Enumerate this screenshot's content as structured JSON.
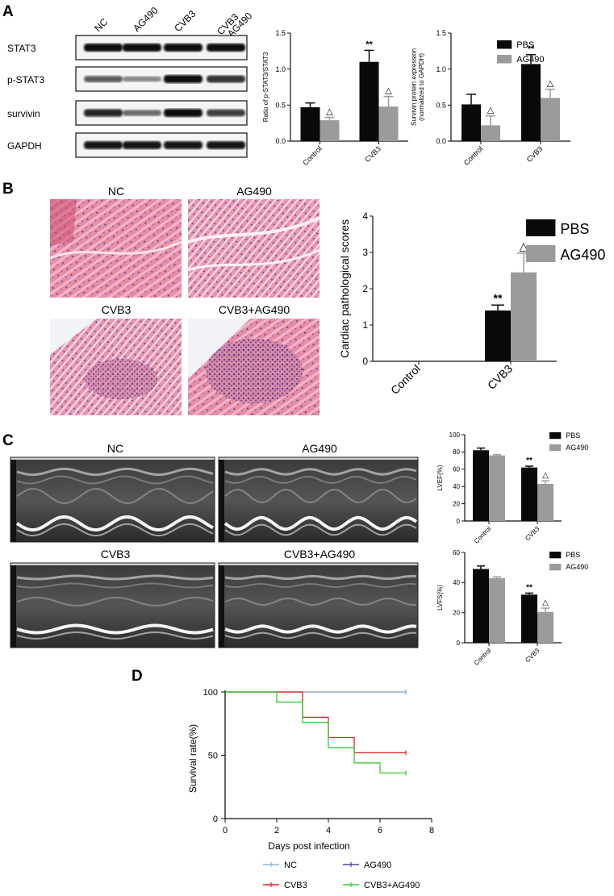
{
  "panels": {
    "A": "A",
    "B": "B",
    "C": "C",
    "D": "D"
  },
  "colors": {
    "pbs": "#0a0a0a",
    "ag490": "#9b9b9b",
    "nc": "#8fb4d9",
    "ag490_line": "#5b3fa0",
    "cvb3": "#e02020",
    "cvb3_ag490": "#33cc33"
  },
  "blot": {
    "lanes": [
      "NC",
      "AG490",
      "CVB3",
      "CVB3\n+AG490"
    ],
    "rows": [
      "STAT3",
      "p-STAT3",
      "survivin",
      "GAPDH"
    ]
  },
  "histology": {
    "labels": [
      "NC",
      "AG490",
      "CVB3",
      "CVB3+AG490"
    ]
  },
  "echo": {
    "labels": [
      "NC",
      "AG490",
      "CVB3",
      "CVB3+AG490"
    ]
  },
  "chart_data": [
    {
      "id": "A1",
      "type": "bar",
      "categories": [
        "Control",
        "CVB3"
      ],
      "series": [
        {
          "name": "PBS",
          "values": [
            0.47,
            1.1
          ],
          "errors": [
            0.06,
            0.16
          ]
        },
        {
          "name": "AG490",
          "values": [
            0.29,
            0.48
          ],
          "errors": [
            0.04,
            0.14
          ]
        }
      ],
      "annotations": [
        [
          "",
          "**"
        ],
        [
          "△",
          "△"
        ]
      ],
      "ylabel": "Ratio of p-STAT3/STAT3",
      "ylim": [
        0,
        1.5
      ],
      "yticks": [
        0.0,
        0.5,
        1.0,
        1.5
      ],
      "ytick_labels": [
        "0.0",
        "0.5",
        "1.0",
        "1.5"
      ]
    },
    {
      "id": "A2",
      "type": "bar",
      "categories": [
        "Control",
        "CVB3"
      ],
      "series": [
        {
          "name": "PBS",
          "values": [
            0.51,
            1.07
          ],
          "errors": [
            0.14,
            0.13
          ]
        },
        {
          "name": "AG490",
          "values": [
            0.22,
            0.6
          ],
          "errors": [
            0.13,
            0.12
          ]
        }
      ],
      "annotations": [
        [
          "",
          "**"
        ],
        [
          "△",
          "△"
        ]
      ],
      "ylabel": "Survivin protein expression\n(normalized to GAPDH)",
      "ylim": [
        0,
        1.5
      ],
      "yticks": [
        0.0,
        0.5,
        1.0,
        1.5
      ],
      "ytick_labels": [
        "0.0",
        "0.5",
        "1.0",
        "1.5"
      ],
      "legend": [
        "PBS",
        "AG490"
      ]
    },
    {
      "id": "B1",
      "type": "bar",
      "categories": [
        "Control",
        "CVB3"
      ],
      "series": [
        {
          "name": "PBS",
          "values": [
            0,
            1.4
          ],
          "errors": [
            0,
            0.15
          ]
        },
        {
          "name": "AG490",
          "values": [
            0,
            2.45
          ],
          "errors": [
            0,
            0.53
          ]
        }
      ],
      "annotations": [
        [
          "",
          "**"
        ],
        [
          "",
          "△"
        ]
      ],
      "ylabel": "Cardiac pathological scores",
      "ylim": [
        0,
        4
      ],
      "yticks": [
        0,
        1,
        2,
        3,
        4
      ],
      "ytick_labels": [
        "0",
        "1",
        "2",
        "3",
        "4"
      ],
      "legend": [
        "PBS",
        "AG490"
      ]
    },
    {
      "id": "C1",
      "type": "bar",
      "categories": [
        "Control",
        "CVB3"
      ],
      "series": [
        {
          "name": "PBS",
          "values": [
            82,
            62
          ],
          "errors": [
            2.5,
            1.5
          ]
        },
        {
          "name": "AG490",
          "values": [
            76,
            43
          ],
          "errors": [
            1.0,
            3.5
          ]
        }
      ],
      "annotations": [
        [
          "",
          "**"
        ],
        [
          "",
          "△"
        ]
      ],
      "ylabel": "LVEF(%)",
      "ylim": [
        0,
        100
      ],
      "yticks": [
        0,
        20,
        40,
        60,
        80,
        100
      ],
      "ytick_labels": [
        "0",
        "20",
        "40",
        "60",
        "80",
        "100"
      ],
      "legend": [
        "PBS",
        "AG490"
      ]
    },
    {
      "id": "C2",
      "type": "bar",
      "categories": [
        "Control",
        "CVB3"
      ],
      "series": [
        {
          "name": "PBS",
          "values": [
            49,
            32
          ],
          "errors": [
            2.0,
            1.0
          ]
        },
        {
          "name": "AG490",
          "values": [
            43,
            20.5
          ],
          "errors": [
            0.8,
            2.5
          ]
        }
      ],
      "annotations": [
        [
          "",
          "**"
        ],
        [
          "",
          "△"
        ]
      ],
      "ylabel": "LVFS(%)",
      "ylim": [
        0,
        60
      ],
      "yticks": [
        0,
        20,
        40,
        60
      ],
      "ytick_labels": [
        "0",
        "20",
        "40",
        "60"
      ],
      "legend": [
        "PBS",
        "AG490"
      ]
    },
    {
      "id": "D1",
      "type": "line",
      "xlabel": "Days post infection",
      "ylabel": "Survival rate(%)",
      "xlim": [
        0,
        8
      ],
      "ylim": [
        0,
        100
      ],
      "xticks": [
        0,
        2,
        4,
        6,
        8
      ],
      "yticks": [
        0,
        50,
        100
      ],
      "series": [
        {
          "name": "NC",
          "steps": [
            [
              0,
              100
            ],
            [
              7,
              100
            ]
          ]
        },
        {
          "name": "AG490",
          "steps": [
            [
              0,
              100
            ],
            [
              7,
              100
            ]
          ]
        },
        {
          "name": "CVB3",
          "steps": [
            [
              0,
              100
            ],
            [
              3,
              80
            ],
            [
              4,
              64
            ],
            [
              5,
              52
            ],
            [
              7,
              52
            ]
          ]
        },
        {
          "name": "CVB3+AG490",
          "steps": [
            [
              0,
              100
            ],
            [
              2,
              92
            ],
            [
              3,
              76
            ],
            [
              4,
              56
            ],
            [
              5,
              44
            ],
            [
              6,
              36
            ],
            [
              7,
              36
            ]
          ]
        }
      ],
      "legend": [
        "NC",
        "AG490",
        "CVB3",
        "CVB3+AG490"
      ]
    }
  ]
}
